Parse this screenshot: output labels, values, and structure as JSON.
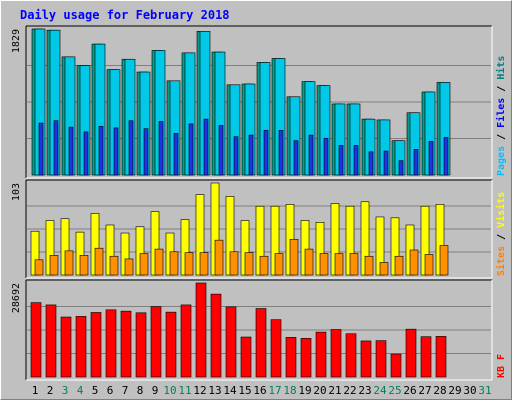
{
  "chart_data": {
    "type": "bar",
    "title": "Daily usage for February 2018",
    "days": [
      "1",
      "2",
      "3",
      "4",
      "5",
      "6",
      "7",
      "8",
      "9",
      "10",
      "11",
      "12",
      "13",
      "14",
      "15",
      "16",
      "17",
      "18",
      "19",
      "20",
      "21",
      "22",
      "23",
      "24",
      "25",
      "26",
      "27",
      "28",
      "29",
      "30",
      "31"
    ],
    "weekend_days": [
      "3",
      "4",
      "10",
      "11",
      "17",
      "18",
      "24",
      "25",
      "31"
    ],
    "panels": [
      {
        "name": "hits-files-pages",
        "ymax_label": "1829",
        "ymax": 1829,
        "legend": [
          {
            "text": "Pages",
            "color": "#00c0ff"
          },
          {
            "text": "Files",
            "color": "#0000ff"
          },
          {
            "text": "Hits",
            "color": "#008080"
          }
        ],
        "series": [
          {
            "name": "Hits",
            "color": "#00a08c",
            "values": [
              1829,
              1814,
              1480,
              1370,
              1640,
              1320,
              1450,
              1290,
              1560,
              1180,
              1530,
              1800,
              1540,
              1130,
              1140,
              1410,
              1460,
              980,
              1170,
              1120,
              890,
              890,
              700,
              690,
              430,
              780,
              1040,
              1160
            ]
          },
          {
            "name": "Files",
            "color": "#00c8e6",
            "values": [
              1829,
              1814,
              1480,
              1370,
              1640,
              1320,
              1450,
              1290,
              1560,
              1180,
              1530,
              1800,
              1540,
              1130,
              1140,
              1410,
              1460,
              980,
              1170,
              1120,
              890,
              890,
              700,
              690,
              430,
              780,
              1040,
              1160
            ]
          },
          {
            "name": "Pages",
            "color": "#1e32e6",
            "values": [
              650,
              680,
              600,
              540,
              610,
              590,
              680,
              580,
              670,
              520,
              640,
              700,
              620,
              480,
              500,
              560,
              560,
              430,
              500,
              460,
              370,
              370,
              290,
              300,
              180,
              320,
              420,
              470
            ]
          }
        ]
      },
      {
        "name": "visits-sites",
        "ymax_label": "103",
        "ymax": 103,
        "legend": [
          {
            "text": "Sites",
            "color": "#ff8000"
          },
          {
            "text": "Visits",
            "color": "#ffff00"
          }
        ],
        "series": [
          {
            "name": "Visits",
            "color": "#ffff00",
            "values": [
              49,
              61,
              63,
              48,
              69,
              56,
              47,
              54,
              71,
              47,
              62,
              90,
              103,
              88,
              61,
              77,
              77,
              79,
              61,
              59,
              80,
              77,
              82,
              65,
              64,
              56,
              77,
              79
            ]
          },
          {
            "name": "Sites",
            "color": "#ff9000",
            "values": [
              17,
              22,
              27,
              22,
              30,
              21,
              18,
              24,
              29,
              26,
              25,
              25,
              39,
              26,
              25,
              21,
              24,
              40,
              29,
              24,
              24,
              24,
              21,
              14,
              21,
              28,
              23,
              33
            ]
          }
        ]
      },
      {
        "name": "kbytes",
        "ymax_label": "28692",
        "ymax": 28692,
        "legend": [
          {
            "text": "KB F",
            "color": "#ff0000"
          }
        ],
        "series": [
          {
            "name": "KB F",
            "color": "#ff0000",
            "values": [
              22700,
              22000,
              18300,
              18500,
              19700,
              20500,
              20100,
              19600,
              21500,
              19800,
              22000,
              28692,
              25300,
              21400,
              12200,
              20900,
              17500,
              12100,
              11800,
              13700,
              14500,
              13200,
              11000,
              11100,
              7000,
              14600,
              12300,
              12400
            ]
          }
        ]
      }
    ]
  }
}
